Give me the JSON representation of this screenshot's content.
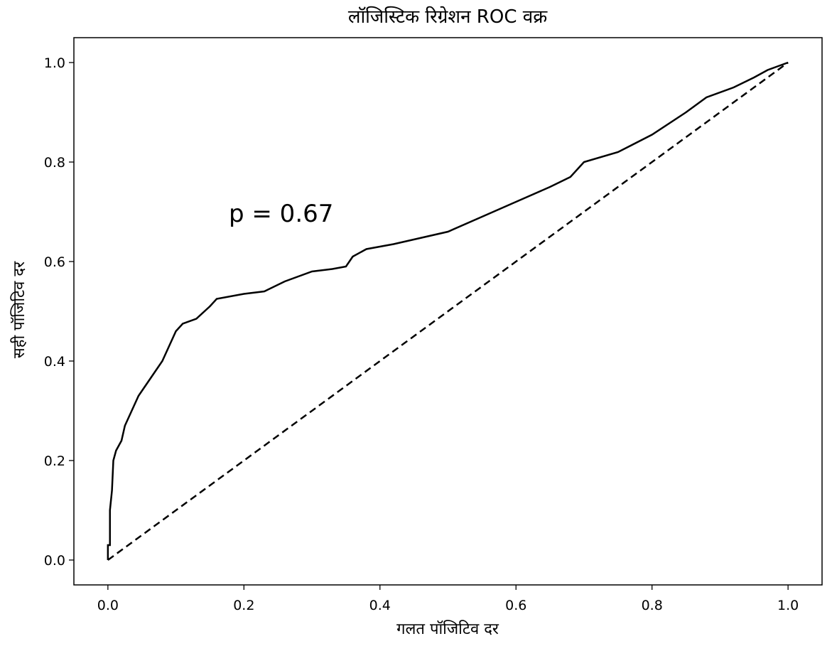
{
  "chart_data": {
    "type": "line",
    "title": "लॉजिस्टिक रिग्रेशन ROC वक्र",
    "xlabel": "गलत पॉजिटिव दर",
    "ylabel": "सही पॉजिटिव दर",
    "annotation": "p = 0.67",
    "xlim": [
      -0.05,
      1.05
    ],
    "ylim": [
      -0.05,
      1.05
    ],
    "xticks": [
      {
        "value": 0,
        "label": "0.0"
      },
      0.2,
      0.4,
      0.6,
      0.8,
      {
        "value": 1,
        "label": "1.0"
      }
    ],
    "yticks": [
      {
        "value": 0,
        "label": "0.0"
      },
      0.2,
      0.4,
      0.6,
      0.8,
      {
        "value": 1,
        "label": "1.0"
      }
    ],
    "grid": false,
    "series": [
      {
        "color": "#000000",
        "dash": false,
        "x": [
          0,
          0,
          0.003,
          0.003,
          0.006,
          0.008,
          0.012,
          0.02,
          0.025,
          0.035,
          0.045,
          0.055,
          0.07,
          0.08,
          0.09,
          0.1,
          0.11,
          0.13,
          0.15,
          0.16,
          0.2,
          0.23,
          0.26,
          0.3,
          0.33,
          0.35,
          0.36,
          0.38,
          0.42,
          0.5,
          0.55,
          0.6,
          0.65,
          0.68,
          0.7,
          0.75,
          0.8,
          0.85,
          0.88,
          0.92,
          0.95,
          0.97,
          1
        ],
        "y": [
          0,
          0.03,
          0.03,
          0.1,
          0.14,
          0.2,
          0.22,
          0.24,
          0.27,
          0.3,
          0.33,
          0.35,
          0.38,
          0.4,
          0.43,
          0.46,
          0.475,
          0.485,
          0.51,
          0.525,
          0.535,
          0.54,
          0.56,
          0.58,
          0.585,
          0.59,
          0.61,
          0.625,
          0.635,
          0.66,
          0.69,
          0.72,
          0.75,
          0.77,
          0.8,
          0.82,
          0.855,
          0.9,
          0.93,
          0.95,
          0.97,
          0.985,
          1
        ]
      },
      {
        "color": "#000000",
        "dash": true,
        "x": [
          0,
          1
        ],
        "y": [
          0,
          1
        ]
      }
    ]
  }
}
